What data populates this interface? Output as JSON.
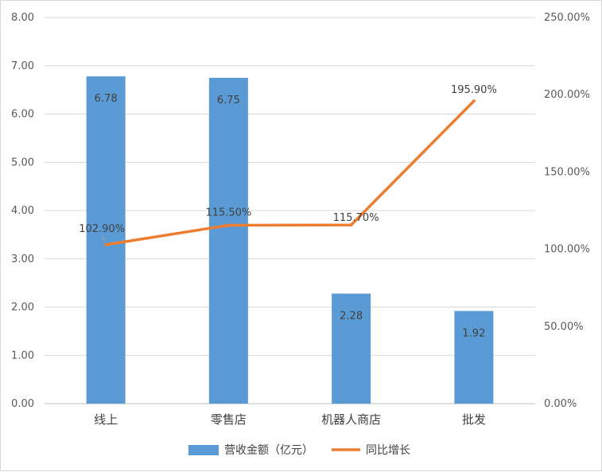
{
  "chart_data": {
    "type": "bar+line",
    "categories": [
      "线上",
      "零售店",
      "机器人商店",
      "批发"
    ],
    "series": [
      {
        "name": "营收金额（亿元）",
        "type": "bar",
        "axis": "left",
        "values": [
          6.78,
          6.75,
          2.28,
          1.92
        ],
        "labels": [
          "6.78",
          "6.75",
          "2.28",
          "1.92"
        ],
        "color": "#5b9bd5"
      },
      {
        "name": "同比增长",
        "type": "line",
        "axis": "right",
        "values": [
          102.9,
          115.5,
          115.7,
          195.9
        ],
        "labels": [
          "102.90%",
          "115.50%",
          "115.70%",
          "195.90%"
        ],
        "color": "#ed7d31"
      }
    ],
    "y_left": {
      "min": 0,
      "max": 8,
      "ticks": [
        "0.00",
        "1.00",
        "2.00",
        "3.00",
        "4.00",
        "5.00",
        "6.00",
        "7.00",
        "8.00"
      ]
    },
    "y_right": {
      "min": 0,
      "max": 250,
      "ticks": [
        "0.00%",
        "50.00%",
        "100.00%",
        "150.00%",
        "200.00%",
        "250.00%"
      ]
    },
    "grid": true,
    "legend_position": "bottom"
  }
}
